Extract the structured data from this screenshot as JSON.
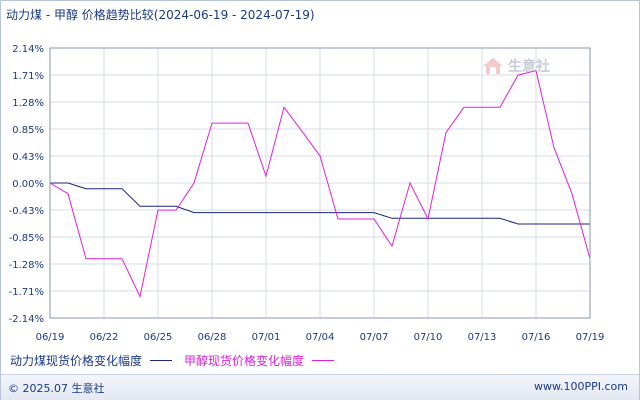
{
  "title": {
    "main": "动力煤 - 甲醇 价格趋势比较",
    "range": "(2024-06-19 - 2024-07-19)"
  },
  "chart_data": {
    "type": "line",
    "x": [
      "06/19",
      "06/20",
      "06/21",
      "06/22",
      "06/23",
      "06/24",
      "06/25",
      "06/26",
      "06/27",
      "06/28",
      "06/29",
      "06/30",
      "07/01",
      "07/02",
      "07/03",
      "07/04",
      "07/05",
      "07/06",
      "07/07",
      "07/08",
      "07/09",
      "07/10",
      "07/11",
      "07/12",
      "07/13",
      "07/14",
      "07/15",
      "07/16",
      "07/17",
      "07/18",
      "07/19"
    ],
    "x_tick_labels": [
      "06/19",
      "06/22",
      "06/25",
      "06/28",
      "07/01",
      "07/04",
      "07/07",
      "07/10",
      "07/13",
      "07/16",
      "07/19"
    ],
    "y_tick_labels": [
      "2.14%",
      "1.71%",
      "1.28%",
      "0.85%",
      "0.43%",
      "0.00%",
      "-0.43%",
      "-0.85%",
      "-1.28%",
      "-1.71%",
      "-2.14%"
    ],
    "ylim": [
      -2.14,
      2.14
    ],
    "series": [
      {
        "name": "动力煤现货价格变化幅度",
        "color": "#1a237e",
        "values": [
          0,
          0,
          -0.09,
          -0.09,
          -0.09,
          -0.37,
          -0.37,
          -0.37,
          -0.47,
          -0.47,
          -0.47,
          -0.47,
          -0.47,
          -0.47,
          -0.47,
          -0.47,
          -0.47,
          -0.47,
          -0.47,
          -0.56,
          -0.56,
          -0.56,
          -0.56,
          -0.56,
          -0.56,
          -0.56,
          -0.65,
          -0.65,
          -0.65,
          -0.65,
          -0.65
        ]
      },
      {
        "name": "甲醇现货价格变化幅度",
        "color": "#e020e0",
        "values": [
          0,
          -0.17,
          -1.2,
          -1.2,
          -1.2,
          -1.8,
          -0.43,
          -0.43,
          0,
          0.95,
          0.95,
          0.95,
          0.11,
          1.2,
          0.82,
          0.43,
          -0.57,
          -0.57,
          -0.57,
          -1,
          0,
          -0.57,
          0.8,
          1.2,
          1.2,
          1.2,
          1.71,
          1.78,
          0.56,
          -0.17,
          -1.2
        ]
      }
    ],
    "grid": true
  },
  "legend": {
    "coal_label": "动力煤现货价格变化幅度",
    "methanol_label": "甲醇现货价格变化幅度"
  },
  "watermark": {
    "text": "生意社"
  },
  "footer": {
    "left": "© 2025.07 生意社",
    "right": "www.100PPI.com"
  }
}
